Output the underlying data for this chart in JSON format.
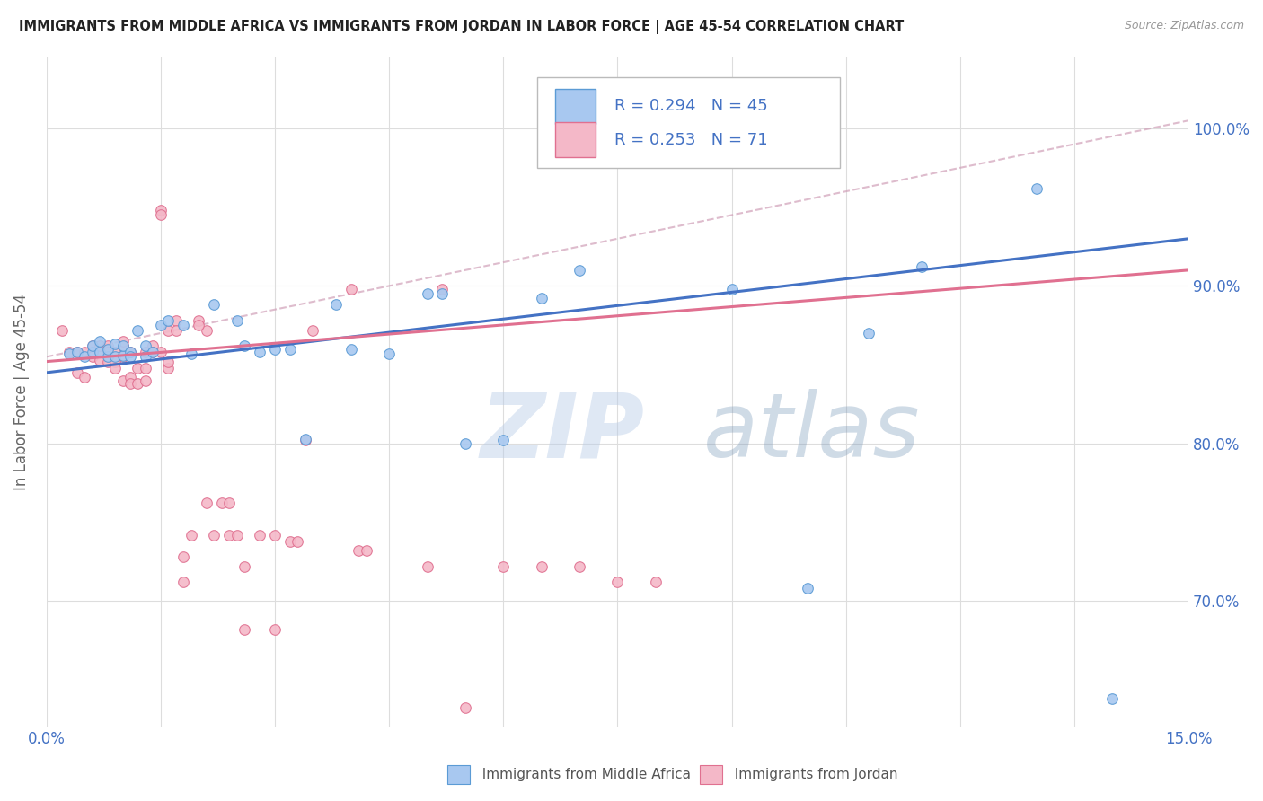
{
  "title": "IMMIGRANTS FROM MIDDLE AFRICA VS IMMIGRANTS FROM JORDAN IN LABOR FORCE | AGE 45-54 CORRELATION CHART",
  "source": "Source: ZipAtlas.com",
  "ylabel": "In Labor Force | Age 45-54",
  "xmin": 0.0,
  "xmax": 0.15,
  "ymin": 0.62,
  "ymax": 1.045,
  "color_blue": "#A8C8F0",
  "color_blue_edge": "#5B9BD5",
  "color_blue_line": "#4472C4",
  "color_pink": "#F4B8C8",
  "color_pink_edge": "#E07090",
  "color_pink_line": "#E07090",
  "color_dash": "#D0A0B8",
  "watermark_text": "ZIPatlas",
  "legend_R1": "R = 0.294",
  "legend_N1": "N = 45",
  "legend_R2": "R = 0.253",
  "legend_N2": "N = 71",
  "blue_scatter_x": [
    0.003,
    0.004,
    0.005,
    0.006,
    0.006,
    0.007,
    0.007,
    0.008,
    0.008,
    0.009,
    0.009,
    0.01,
    0.01,
    0.011,
    0.011,
    0.012,
    0.013,
    0.013,
    0.014,
    0.015,
    0.016,
    0.018,
    0.019,
    0.022,
    0.025,
    0.026,
    0.028,
    0.03,
    0.032,
    0.034,
    0.038,
    0.04,
    0.05,
    0.055,
    0.065,
    0.07,
    0.09,
    0.1,
    0.108,
    0.115,
    0.13,
    0.14,
    0.052,
    0.06,
    0.045
  ],
  "blue_scatter_y": [
    0.857,
    0.858,
    0.855,
    0.858,
    0.862,
    0.858,
    0.865,
    0.855,
    0.86,
    0.855,
    0.863,
    0.856,
    0.862,
    0.858,
    0.855,
    0.872,
    0.855,
    0.862,
    0.858,
    0.875,
    0.878,
    0.875,
    0.857,
    0.888,
    0.878,
    0.862,
    0.858,
    0.86,
    0.86,
    0.803,
    0.888,
    0.86,
    0.895,
    0.8,
    0.892,
    0.91,
    0.898,
    0.708,
    0.87,
    0.912,
    0.962,
    0.638,
    0.895,
    0.802,
    0.857
  ],
  "pink_scatter_x": [
    0.002,
    0.003,
    0.004,
    0.004,
    0.005,
    0.005,
    0.006,
    0.006,
    0.007,
    0.007,
    0.007,
    0.008,
    0.008,
    0.008,
    0.009,
    0.009,
    0.009,
    0.01,
    0.01,
    0.01,
    0.011,
    0.011,
    0.011,
    0.012,
    0.012,
    0.013,
    0.013,
    0.013,
    0.014,
    0.014,
    0.015,
    0.015,
    0.016,
    0.016,
    0.016,
    0.017,
    0.017,
    0.018,
    0.018,
    0.019,
    0.02,
    0.021,
    0.021,
    0.022,
    0.023,
    0.024,
    0.025,
    0.026,
    0.026,
    0.028,
    0.03,
    0.03,
    0.032,
    0.034,
    0.035,
    0.04,
    0.041,
    0.042,
    0.05,
    0.052,
    0.055,
    0.06,
    0.065,
    0.07,
    0.075,
    0.08,
    0.033,
    0.024,
    0.02,
    0.015,
    0.01
  ],
  "pink_scatter_y": [
    0.872,
    0.858,
    0.858,
    0.845,
    0.858,
    0.842,
    0.862,
    0.855,
    0.858,
    0.853,
    0.862,
    0.862,
    0.858,
    0.852,
    0.858,
    0.852,
    0.848,
    0.862,
    0.855,
    0.84,
    0.858,
    0.842,
    0.838,
    0.848,
    0.838,
    0.858,
    0.848,
    0.84,
    0.862,
    0.858,
    0.948,
    0.858,
    0.848,
    0.872,
    0.852,
    0.878,
    0.872,
    0.712,
    0.728,
    0.742,
    0.878,
    0.872,
    0.762,
    0.742,
    0.762,
    0.742,
    0.742,
    0.722,
    0.682,
    0.742,
    0.742,
    0.682,
    0.738,
    0.802,
    0.872,
    0.898,
    0.732,
    0.732,
    0.722,
    0.898,
    0.632,
    0.722,
    0.722,
    0.722,
    0.712,
    0.712,
    0.738,
    0.762,
    0.875,
    0.945,
    0.865
  ]
}
